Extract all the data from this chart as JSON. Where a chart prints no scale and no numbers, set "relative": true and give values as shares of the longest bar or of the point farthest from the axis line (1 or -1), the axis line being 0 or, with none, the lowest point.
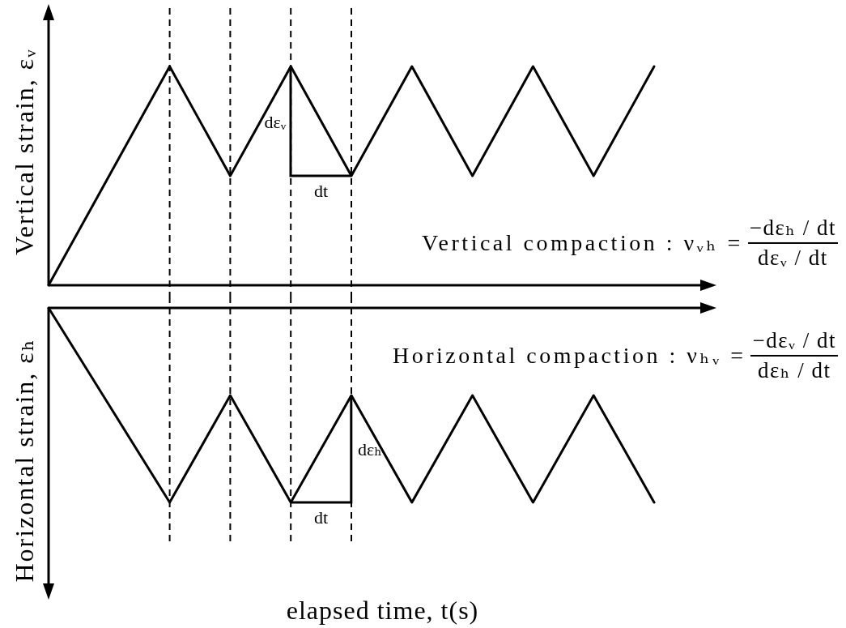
{
  "chart_data": [
    {
      "type": "line",
      "ylabel": "Vertical strain, εᵥ",
      "categories": [
        null,
        null,
        null,
        null,
        null,
        null,
        null,
        null,
        null,
        null,
        null
      ],
      "values": [
        0,
        0.5,
        1,
        0.5,
        1,
        0.5,
        1,
        0.5,
        1,
        0.5,
        1
      ],
      "color": "#000000",
      "relative": true,
      "tick_labels": false,
      "grid": "x",
      "annotations": [
        "dεᵥ",
        "dt",
        "Vertical compaction : νᵥₕ =",
        "−dεₕ / dt",
        "dεᵥ / dt"
      ]
    },
    {
      "type": "line",
      "xlabel": "elapsed time, t(s)",
      "ylabel": "Horizontal strain, εₕ",
      "categories": [
        null,
        null,
        null,
        null,
        null,
        null,
        null,
        null,
        null,
        null,
        null
      ],
      "values": [
        0,
        -0.5,
        -1,
        -0.45,
        -1,
        -0.45,
        -1,
        -0.45,
        -1,
        -0.45,
        -1
      ],
      "color": "#000000",
      "relative": true,
      "tick_labels": false,
      "grid": "x",
      "annotations": [
        "dεₕ",
        "dt",
        "Horizontal compaction : νₕᵥ =",
        "−dεᵥ / dt",
        "dεₕ / dt"
      ]
    }
  ]
}
